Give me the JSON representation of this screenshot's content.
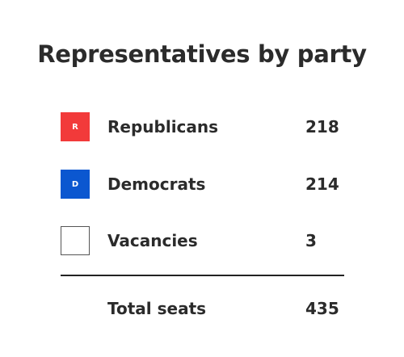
{
  "title": "Representatives by party",
  "rows": [
    {
      "badge": "R",
      "label": "Republicans",
      "value": 218
    },
    {
      "badge": "D",
      "label": "Democrats",
      "value": 214
    },
    {
      "label": "Vacancies",
      "value": 3
    }
  ],
  "total": {
    "label": "Total seats",
    "value": 435
  }
}
